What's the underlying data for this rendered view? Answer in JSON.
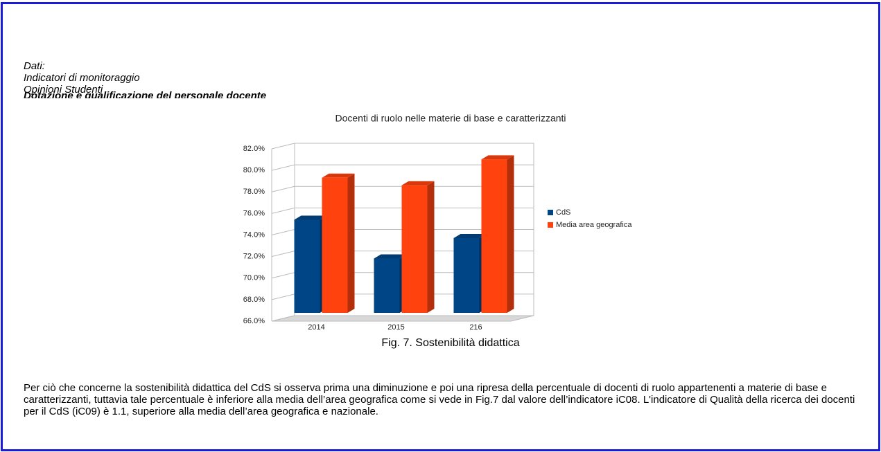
{
  "header": {
    "lines": [
      "Dati:",
      "Indicatori di monitoraggio",
      "Opinioni Studenti"
    ]
  },
  "section_title": "Dotazione e qualificazione del personale docente",
  "chart_data": {
    "type": "bar3d",
    "title": "Docenti di ruolo nelle materie di base e caratterizzanti",
    "categories": [
      "2014",
      "2015",
      "216"
    ],
    "series": [
      {
        "name": "CdS",
        "color": "#004586",
        "values": [
          74.9,
          71.3,
          73.2
        ]
      },
      {
        "name": "Media area geografica",
        "color": "#ff420e",
        "values": [
          78.8,
          78.1,
          80.5
        ]
      }
    ],
    "ylim": [
      66,
      82
    ],
    "yticks": [
      {
        "value": 66,
        "label": "66.0%"
      },
      {
        "value": 68,
        "label": "68.0%"
      },
      {
        "value": 70,
        "label": "70.0%"
      },
      {
        "value": 72,
        "label": "72.0%"
      },
      {
        "value": 74,
        "label": "74.0%"
      },
      {
        "value": 76,
        "label": "76.0%"
      },
      {
        "value": 78,
        "label": "78.0%"
      },
      {
        "value": 80,
        "label": "80.0%"
      },
      {
        "value": 82,
        "label": "82.0%"
      }
    ],
    "grid": true,
    "legend": "right"
  },
  "caption": "Fig. 7. Sostenibilità didattica",
  "paragraph": "Per ciò che concerne la sostenibilità didattica del CdS si osserva prima una diminuzione e poi una ripresa della percentuale di docenti di ruolo appartenenti a materie di base e caratterizzanti, tuttavia tale percentuale è inferiore alla media dell’area geografica come si vede in Fig.7 dal valore dell’indicatore iC08. L'indicatore di Qualità della ricerca dei docenti per il CdS (iC09) è 1.1, superiore alla media dell’area geografica e nazionale."
}
